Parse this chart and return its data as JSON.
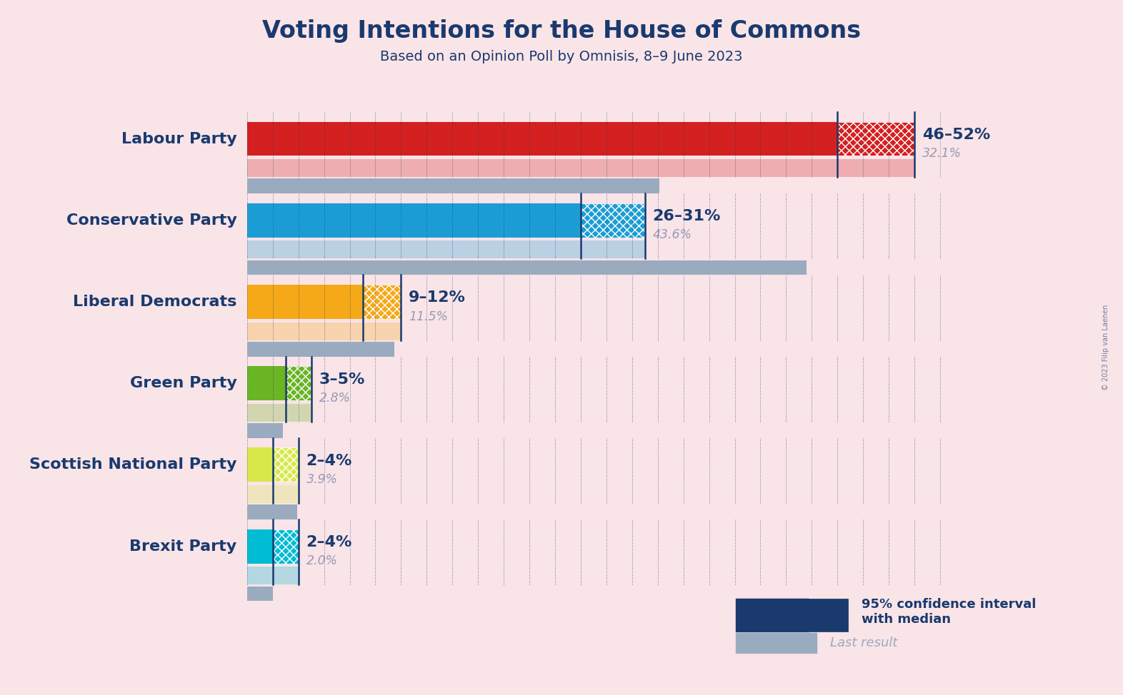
{
  "title": "Voting Intentions for the House of Commons",
  "subtitle": "Based on an Opinion Poll by Omnisis, 8–9 June 2023",
  "background_color": "#f9e4e8",
  "parties": [
    "Labour Party",
    "Conservative Party",
    "Liberal Democrats",
    "Green Party",
    "Scottish National Party",
    "Brexit Party"
  ],
  "colors": [
    "#d42020",
    "#1b9dd4",
    "#f5a818",
    "#6ab523",
    "#d8e84a",
    "#00bcd4"
  ],
  "ci_low": [
    46,
    26,
    9,
    3,
    2,
    2
  ],
  "ci_high": [
    52,
    31,
    12,
    5,
    4,
    4
  ],
  "last_results": [
    32.1,
    43.6,
    11.5,
    2.8,
    3.9,
    2.0
  ],
  "range_labels": [
    "46–52%",
    "26–31%",
    "9–12%",
    "3–5%",
    "2–4%",
    "2–4%"
  ],
  "last_result_labels": [
    "32.1%",
    "43.6%",
    "11.5%",
    "2.8%",
    "3.9%",
    "2.0%"
  ],
  "party_label_color": "#1a3a6e",
  "range_label_color": "#1a3a6e",
  "last_result_label_color": "#9a9ab5",
  "xlim": [
    0,
    56
  ],
  "grid_color": "#1a3a6e",
  "legend_ci_color": "#1a3a6e",
  "legend_last_result_color": "#9aabbf",
  "watermark": "© 2023 Filip van Laenen"
}
